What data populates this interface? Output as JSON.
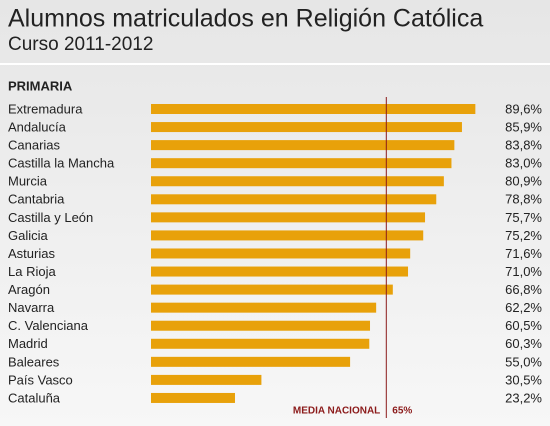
{
  "chart_data": {
    "type": "bar",
    "orientation": "horizontal",
    "title": "Alumnos matriculados en Religión Católica",
    "subtitle": "Curso 2011-2012",
    "section": "PRIMARIA",
    "categories": [
      "Extremadura",
      "Andalucía",
      "Canarias",
      "Castilla la Mancha",
      "Murcia",
      "Cantabria",
      "Castilla y León",
      "Galicia",
      "Asturias",
      "La Rioja",
      "Aragón",
      "Navarra",
      "C. Valenciana",
      "Madrid",
      "Baleares",
      "País Vasco",
      "Cataluña"
    ],
    "values": [
      89.6,
      85.9,
      83.8,
      83.0,
      80.9,
      78.8,
      75.7,
      75.2,
      71.6,
      71.0,
      66.8,
      62.2,
      60.5,
      60.3,
      55.0,
      30.5,
      23.2
    ],
    "value_labels": [
      "89,6%",
      "85,9%",
      "83,8%",
      "83,0%",
      "80,9%",
      "78,8%",
      "75,7%",
      "75,2%",
      "71,6%",
      "71,0%",
      "66,8%",
      "62,2%",
      "60,5%",
      "60,3%",
      "55,0%",
      "30,5%",
      "23,2%"
    ],
    "color": "#e8a10a",
    "xlim": [
      0,
      100
    ],
    "reference": {
      "value": 65,
      "label": "65%",
      "name": "MEDIA NACIONAL",
      "color": "#8b1a1a"
    }
  }
}
